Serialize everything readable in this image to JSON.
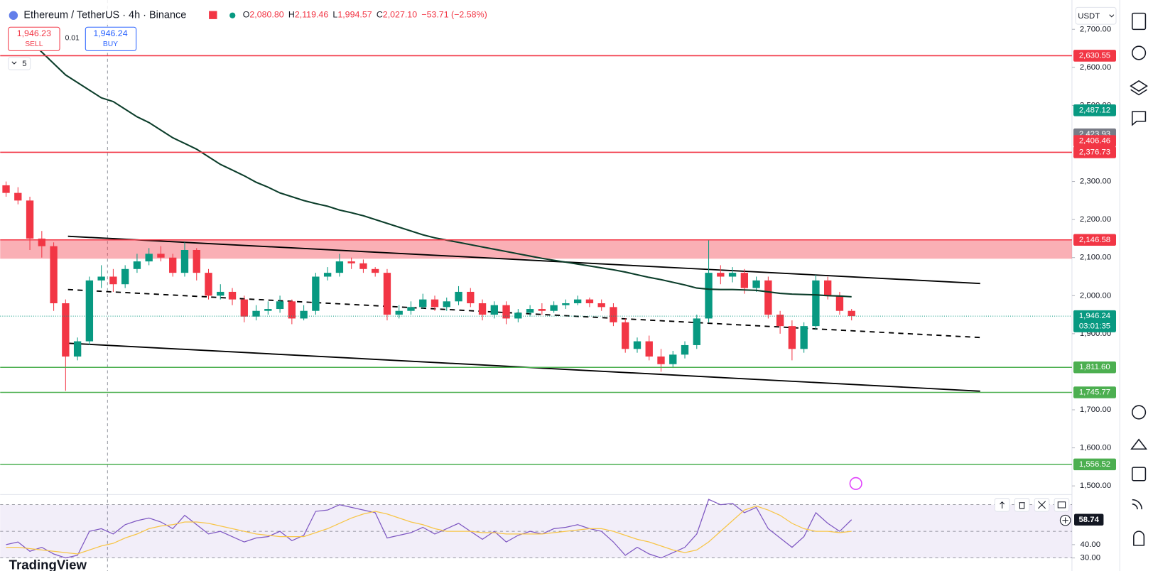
{
  "header": {
    "symbol": "Ethereum / TetherUS · 4h · Binance",
    "ohlc": [
      {
        "key": "O",
        "value": "2,080.80"
      },
      {
        "key": "H",
        "value": "2,119.46"
      },
      {
        "key": "L",
        "value": "1,994.57"
      },
      {
        "key": "C",
        "value": "2,027.10"
      }
    ],
    "change": "−53.71 (−2.58%)",
    "sell": {
      "price": "1,946.23",
      "label": "SELL"
    },
    "spread": "0.01",
    "buy": {
      "price": "1,946.24",
      "label": "BUY"
    },
    "indicators_count": "5",
    "currency": "USDT",
    "brand": "TradingView"
  },
  "chart_data": [
    {
      "type": "candlestick",
      "ylim": [
        1483,
        2777
      ],
      "yticks": [
        {
          "value": 2700,
          "label": "2,700.00"
        },
        {
          "value": 2600,
          "label": "2,600.00"
        },
        {
          "value": 2500,
          "label": "2,500.00"
        },
        {
          "value": 2300,
          "label": "2,300.00"
        },
        {
          "value": 2200,
          "label": "2,200.00"
        },
        {
          "value": 2100,
          "label": "2,100.00"
        },
        {
          "value": 2000,
          "label": "2,000.00"
        },
        {
          "value": 1900,
          "label": "1,900.00"
        },
        {
          "value": 1700,
          "label": "1,700.00"
        },
        {
          "value": 1600,
          "label": "1,600.00"
        },
        {
          "value": 1500,
          "label": "1,500.00"
        }
      ],
      "up_color": "#089981",
      "down_color": "#f23645",
      "open": [
        2290,
        2270,
        2250,
        2150,
        2130,
        1980,
        1840,
        1880,
        2040,
        2050,
        2030,
        2070,
        2090,
        2110,
        2100,
        2060,
        2120,
        2060,
        2000,
        2010,
        1990,
        1945,
        1960,
        1965,
        1985,
        1940,
        1960,
        2050,
        2060,
        2090,
        2085,
        2070,
        2060,
        1950,
        1960,
        1970,
        1990,
        1970,
        1985,
        2010,
        1980,
        1950,
        1975,
        1940,
        1955,
        1965,
        1960,
        1975,
        1980,
        1990,
        1980,
        1970,
        1930,
        1860,
        1880,
        1840,
        1820,
        1845,
        1870,
        1940,
        2060,
        2050,
        2060,
        2020,
        2040,
        1950,
        1920,
        1860,
        1920,
        2040,
        2000,
        1960
      ],
      "high": [
        2300,
        2285,
        2260,
        2170,
        2140,
        1990,
        1890,
        2050,
        2080,
        2070,
        2080,
        2110,
        2125,
        2130,
        2110,
        2140,
        2125,
        2070,
        2030,
        2020,
        2000,
        1975,
        1985,
        2000,
        1990,
        1975,
        2060,
        2075,
        2110,
        2100,
        2095,
        2075,
        2070,
        1975,
        1985,
        2005,
        2000,
        1995,
        2025,
        2020,
        1990,
        1985,
        1985,
        1965,
        1975,
        1980,
        1985,
        1990,
        2000,
        1995,
        1990,
        1980,
        1940,
        1890,
        1895,
        1860,
        1855,
        1880,
        1950,
        2146.58,
        2080,
        2075,
        2070,
        2050,
        2050,
        1960,
        1935,
        1930,
        2055,
        2050,
        2010,
        1965
      ],
      "low": [
        2260,
        2240,
        2120,
        2100,
        1960,
        1750,
        1830,
        1870,
        2020,
        2010,
        2020,
        2060,
        2080,
        2090,
        2050,
        2050,
        2040,
        1990,
        1990,
        1975,
        1930,
        1935,
        1950,
        1955,
        1925,
        1935,
        1950,
        2040,
        2050,
        2070,
        2060,
        2050,
        1935,
        1940,
        1950,
        1965,
        1960,
        1960,
        1975,
        1970,
        1935,
        1940,
        1925,
        1930,
        1945,
        1950,
        1955,
        1965,
        1975,
        1970,
        1960,
        1920,
        1850,
        1850,
        1830,
        1800,
        1810,
        1835,
        1860,
        1930,
        2030,
        2035,
        2005,
        2010,
        1940,
        1900,
        1830,
        1850,
        1910,
        1990,
        1950,
        1935
      ],
      "close": [
        2270,
        2250,
        2150,
        2130,
        1980,
        1840,
        1880,
        2040,
        2050,
        2030,
        2070,
        2090,
        2110,
        2100,
        2060,
        2120,
        2060,
        2000,
        2010,
        1990,
        1945,
        1960,
        1965,
        1985,
        1940,
        1960,
        2050,
        2060,
        2090,
        2085,
        2070,
        2060,
        1950,
        1960,
        1970,
        1990,
        1970,
        1985,
        2010,
        1980,
        1950,
        1975,
        1940,
        1955,
        1965,
        1960,
        1975,
        1980,
        1990,
        1980,
        1970,
        1930,
        1860,
        1880,
        1840,
        1820,
        1845,
        1870,
        1940,
        2060,
        2050,
        2060,
        2020,
        2040,
        1950,
        1920,
        1860,
        1920,
        2040,
        2000,
        1960,
        1946.24
      ],
      "ma": [
        null,
        null,
        2671,
        2640,
        2610,
        2580,
        2560,
        2540,
        2520,
        2510,
        2490,
        2470,
        2455,
        2435,
        2415,
        2400,
        2385,
        2365,
        2345,
        2330,
        2315,
        2298,
        2285,
        2270,
        2260,
        2250,
        2242,
        2235,
        2225,
        2218,
        2210,
        2200,
        2190,
        2180,
        2170,
        2160,
        2152,
        2146,
        2140,
        2134,
        2128,
        2122,
        2116,
        2110,
        2104,
        2098,
        2093,
        2088,
        2083,
        2078,
        2073,
        2068,
        2062,
        2055,
        2048,
        2042,
        2035,
        2028,
        2020,
        2017,
        2016,
        2016,
        2015,
        2014,
        2010,
        2006,
        2004,
        2003,
        2002,
        2000,
        1999,
        1997
      ],
      "ma_color": "#0b3d2a",
      "zone": {
        "from": 2097,
        "to": 2146.58,
        "color": "rgba(242,54,69,0.4)"
      },
      "levels": [
        {
          "value": 2630.55,
          "label": "2,630.55",
          "color": "#f23645"
        },
        {
          "value": 2376.73,
          "label": "2,376.73",
          "color": "#f23645"
        },
        {
          "value": 2146.58,
          "label": "2,146.58",
          "color": "#f23645"
        },
        {
          "value": 1811.6,
          "label": "1,811.60",
          "color": "#4caf50"
        },
        {
          "value": 1745.77,
          "label": "1,745.77",
          "color": "#4caf50"
        },
        {
          "value": 1556.52,
          "label": "1,556.52",
          "color": "#4caf50"
        }
      ],
      "price_tags": [
        {
          "value": 2487.12,
          "label": "2,487.12",
          "color": "#089981"
        },
        {
          "value": 2423.93,
          "label": "2,423.93",
          "color": "#787b86"
        },
        {
          "value": 2406.46,
          "label": "2,406.46",
          "color": "#f23645"
        }
      ],
      "trendlines": [
        {
          "start": [
            5.2,
            2156
          ],
          "end": [
            81.8,
            2032
          ],
          "style": "solid"
        },
        {
          "start": [
            5.2,
            2016
          ],
          "end": [
            81.8,
            1890
          ],
          "style": "dashed"
        },
        {
          "start": [
            5.2,
            1875
          ],
          "end": [
            81.8,
            1749
          ],
          "style": "solid"
        }
      ],
      "last_price": {
        "value": 1946.24,
        "label": "1,946.24",
        "countdown": "03:01:35",
        "color": "#089981"
      }
    },
    {
      "type": "line",
      "ylim": [
        20.2,
        75.4
      ],
      "yticks": [
        {
          "value": 40,
          "label": "40.00"
        },
        {
          "value": 30,
          "label": "30.00"
        }
      ],
      "bands": [
        70,
        50,
        30
      ],
      "series": [
        {
          "color": "#7e57c2",
          "values": [
            40,
            42,
            35,
            38,
            33,
            30,
            32,
            50,
            52,
            48,
            55,
            58,
            60,
            57,
            52,
            62,
            55,
            48,
            50,
            46,
            42,
            45,
            46,
            50,
            43,
            47,
            65,
            66,
            70,
            68,
            66,
            64,
            45,
            47,
            49,
            53,
            48,
            52,
            56,
            50,
            44,
            50,
            42,
            47,
            50,
            48,
            52,
            53,
            55,
            52,
            50,
            42,
            32,
            38,
            33,
            30,
            34,
            38,
            48,
            74,
            70,
            71,
            64,
            68,
            52,
            45,
            38,
            46,
            64,
            56,
            50,
            58.74
          ]
        },
        {
          "color": "#f7c548",
          "values": [
            38,
            38,
            37,
            36,
            35,
            34,
            33,
            36,
            39,
            41,
            45,
            48,
            52,
            54,
            55,
            57,
            57,
            56,
            54,
            52,
            50,
            48,
            47,
            46,
            46,
            46,
            49,
            52,
            56,
            60,
            63,
            65,
            63,
            60,
            57,
            55,
            52,
            50,
            50,
            50,
            49,
            49,
            48,
            48,
            48,
            48,
            49,
            50,
            51,
            52,
            52,
            50,
            47,
            44,
            42,
            39,
            36,
            34,
            36,
            42,
            50,
            58,
            66,
            69,
            66,
            62,
            56,
            52,
            50,
            50,
            49,
            50
          ]
        }
      ],
      "last_label": {
        "value": 58.74,
        "label": "58.74"
      }
    }
  ]
}
